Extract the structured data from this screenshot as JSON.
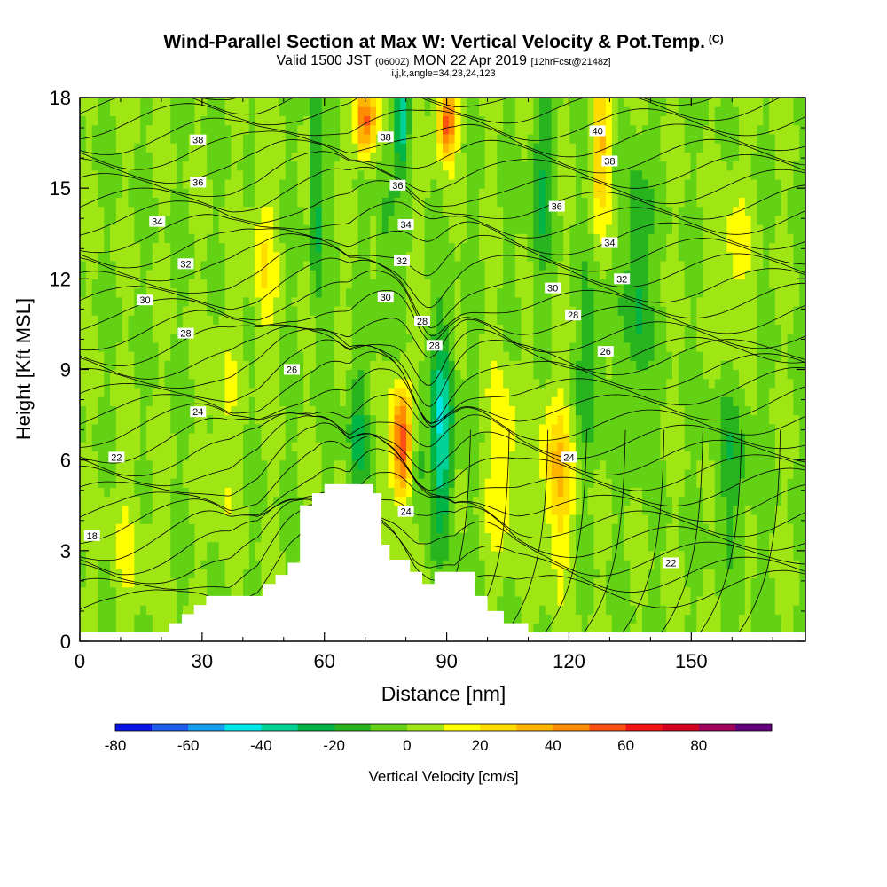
{
  "title": {
    "main": "Wind-Parallel Section at Max W: Vertical Velocity & Pot.Temp.",
    "mark": "(C)",
    "line2_a": "Valid 1500 JST",
    "line2_b": "(0600Z)",
    "line2_c": "MON 22 Apr 2019",
    "line2_d": "[12hrFcst@2148z]",
    "line3": "i,j,k,angle=34,23,24,123"
  },
  "chart_data": {
    "type": "heatmap",
    "xlabel": "Distance [nm]",
    "ylabel": "Height [Kft MSL]",
    "xlim": [
      0,
      178
    ],
    "ylim": [
      0,
      18
    ],
    "x_ticks": [
      "0",
      "30",
      "60",
      "90",
      "120",
      "150"
    ],
    "y_ticks": [
      "0",
      "3",
      "6",
      "9",
      "12",
      "15",
      "18"
    ],
    "colorbar": {
      "label": "Vertical Velocity [cm/s]",
      "tick_labels": [
        "-80",
        "-60",
        "-40",
        "-20",
        "0",
        "20",
        "40",
        "60",
        "80"
      ],
      "levels": [
        -80,
        -70,
        -60,
        -50,
        -40,
        -30,
        -20,
        -10,
        0,
        10,
        20,
        30,
        40,
        50,
        60,
        70,
        80,
        90
      ],
      "colors": [
        "#0a14e6",
        "#1e5cf0",
        "#14a0f0",
        "#00e6e6",
        "#00d296",
        "#00b446",
        "#28b41e",
        "#64d214",
        "#a0e614",
        "#ffff00",
        "#ffdc00",
        "#ffb400",
        "#ff8c00",
        "#ff5014",
        "#f01414",
        "#d2001e",
        "#a0005a",
        "#64007d"
      ]
    },
    "terrain_kft": [
      [
        0,
        0.3
      ],
      [
        22,
        0.3
      ],
      [
        22,
        0.6
      ],
      [
        25,
        0.6
      ],
      [
        25,
        0.9
      ],
      [
        28,
        0.9
      ],
      [
        28,
        1.2
      ],
      [
        31,
        1.2
      ],
      [
        31,
        1.5
      ],
      [
        45,
        1.5
      ],
      [
        45,
        1.9
      ],
      [
        48,
        1.9
      ],
      [
        48,
        2.2
      ],
      [
        51,
        2.2
      ],
      [
        51,
        2.6
      ],
      [
        54,
        2.6
      ],
      [
        54,
        4.5
      ],
      [
        57,
        4.5
      ],
      [
        57,
        4.9
      ],
      [
        60,
        4.9
      ],
      [
        60,
        5.2
      ],
      [
        72,
        5.2
      ],
      [
        72,
        4.9
      ],
      [
        74,
        4.9
      ],
      [
        74,
        3.2
      ],
      [
        76,
        3.2
      ],
      [
        76,
        2.7
      ],
      [
        81,
        2.7
      ],
      [
        81,
        2.3
      ],
      [
        84,
        2.3
      ],
      [
        84,
        1.9
      ],
      [
        87,
        1.9
      ],
      [
        87,
        2.3
      ],
      [
        97,
        2.3
      ],
      [
        97,
        1.5
      ],
      [
        100,
        1.5
      ],
      [
        100,
        1.0
      ],
      [
        104,
        1.0
      ],
      [
        104,
        0.6
      ],
      [
        110,
        0.6
      ],
      [
        110,
        0.3
      ],
      [
        178,
        0.3
      ]
    ],
    "vertical_velocity_features": [
      {
        "x": 79,
        "z": 6.5,
        "sx": 2.5,
        "sz": 2.0,
        "w": 60
      },
      {
        "x": 89,
        "z": 7.0,
        "sx": 2.8,
        "sz": 3.5,
        "w": -40
      },
      {
        "x": 83,
        "z": 6.0,
        "sx": 2.0,
        "sz": 1.5,
        "w": -20
      },
      {
        "x": 68,
        "z": 7.0,
        "sx": 2.5,
        "sz": 2.5,
        "w": -20
      },
      {
        "x": 70,
        "z": 17.2,
        "sx": 2.5,
        "sz": 1.2,
        "w": 55
      },
      {
        "x": 90,
        "z": 17.2,
        "sx": 2.5,
        "sz": 1.2,
        "w": 55
      },
      {
        "x": 79,
        "z": 17.2,
        "sx": 1.8,
        "sz": 1.5,
        "w": -40
      },
      {
        "x": 58,
        "z": 15.0,
        "sx": 1.5,
        "sz": 4.0,
        "w": -25
      },
      {
        "x": 75,
        "z": 13.0,
        "sx": 2.0,
        "sz": 3.0,
        "w": -15
      },
      {
        "x": 117,
        "z": 5.5,
        "sx": 4.0,
        "sz": 3.0,
        "w": 30
      },
      {
        "x": 104,
        "z": 6.0,
        "sx": 4.0,
        "sz": 3.0,
        "w": 20
      },
      {
        "x": 128,
        "z": 16.5,
        "sx": 2.5,
        "sz": 2.5,
        "w": 30
      },
      {
        "x": 137,
        "z": 12.0,
        "sx": 3.0,
        "sz": 4.0,
        "w": -25
      },
      {
        "x": 125,
        "z": 9.0,
        "sx": 4.0,
        "sz": 3.0,
        "w": -15
      },
      {
        "x": 113,
        "z": 15.0,
        "sx": 3.0,
        "sz": 3.0,
        "w": -20
      },
      {
        "x": 160,
        "z": 6.0,
        "sx": 5.0,
        "sz": 3.0,
        "w": -15
      },
      {
        "x": 160,
        "z": 12.5,
        "sx": 4.0,
        "sz": 3.0,
        "w": 15
      },
      {
        "x": 12,
        "z": 3.0,
        "sx": 6.0,
        "sz": 3.0,
        "w": 8
      },
      {
        "x": 45,
        "z": 12.5,
        "sx": 3.0,
        "sz": 3.0,
        "w": 18
      },
      {
        "x": 35,
        "z": 7.0,
        "sx": 3.0,
        "sz": 4.0,
        "w": 12
      }
    ],
    "theta_contour_labels": [
      {
        "label": "38",
        "x": 29,
        "z": 16.6
      },
      {
        "label": "36",
        "x": 29,
        "z": 15.2
      },
      {
        "label": "34",
        "x": 19,
        "z": 13.9
      },
      {
        "label": "32",
        "x": 26,
        "z": 12.5
      },
      {
        "label": "30",
        "x": 16,
        "z": 11.3
      },
      {
        "label": "28",
        "x": 26,
        "z": 10.2
      },
      {
        "label": "26",
        "x": 52,
        "z": 9.0
      },
      {
        "label": "24",
        "x": 29,
        "z": 7.6
      },
      {
        "label": "22",
        "x": 9,
        "z": 6.1
      },
      {
        "label": "18",
        "x": 3,
        "z": 3.5
      },
      {
        "label": "38",
        "x": 75,
        "z": 16.7
      },
      {
        "label": "36",
        "x": 78,
        "z": 15.1
      },
      {
        "label": "34",
        "x": 80,
        "z": 13.8
      },
      {
        "label": "32",
        "x": 79,
        "z": 12.6
      },
      {
        "label": "30",
        "x": 75,
        "z": 11.4
      },
      {
        "label": "28",
        "x": 84,
        "z": 10.6
      },
      {
        "label": "28",
        "x": 87,
        "z": 9.8
      },
      {
        "label": "24",
        "x": 80,
        "z": 4.3
      },
      {
        "label": "40",
        "x": 127,
        "z": 16.9
      },
      {
        "label": "38",
        "x": 130,
        "z": 15.9
      },
      {
        "label": "36",
        "x": 117,
        "z": 14.4
      },
      {
        "label": "34",
        "x": 130,
        "z": 13.2
      },
      {
        "label": "32",
        "x": 133,
        "z": 12.0
      },
      {
        "label": "30",
        "x": 116,
        "z": 11.7
      },
      {
        "label": "28",
        "x": 121,
        "z": 10.8
      },
      {
        "label": "26",
        "x": 129,
        "z": 9.6
      },
      {
        "label": "24",
        "x": 120,
        "z": 6.1
      },
      {
        "label": "22",
        "x": 145,
        "z": 2.6
      }
    ]
  }
}
